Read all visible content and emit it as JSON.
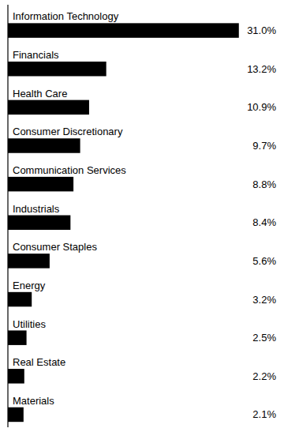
{
  "chart_data": {
    "type": "bar",
    "orientation": "horizontal",
    "categories": [
      "Information Technology",
      "Financials",
      "Health Care",
      "Consumer Discretionary",
      "Communication Services",
      "Industrials",
      "Consumer Staples",
      "Energy",
      "Utilities",
      "Real Estate",
      "Materials"
    ],
    "values": [
      31.0,
      13.2,
      10.9,
      9.7,
      8.8,
      8.4,
      5.6,
      3.2,
      2.5,
      2.2,
      2.1
    ],
    "value_labels": [
      "31.0%",
      "13.2%",
      "10.9%",
      "9.7%",
      "8.8%",
      "8.4%",
      "5.6%",
      "3.2%",
      "2.5%",
      "2.2%",
      "2.1%"
    ],
    "color": "#000000",
    "xlim": [
      0,
      36
    ],
    "data_labels": true,
    "tick_labels": false
  }
}
